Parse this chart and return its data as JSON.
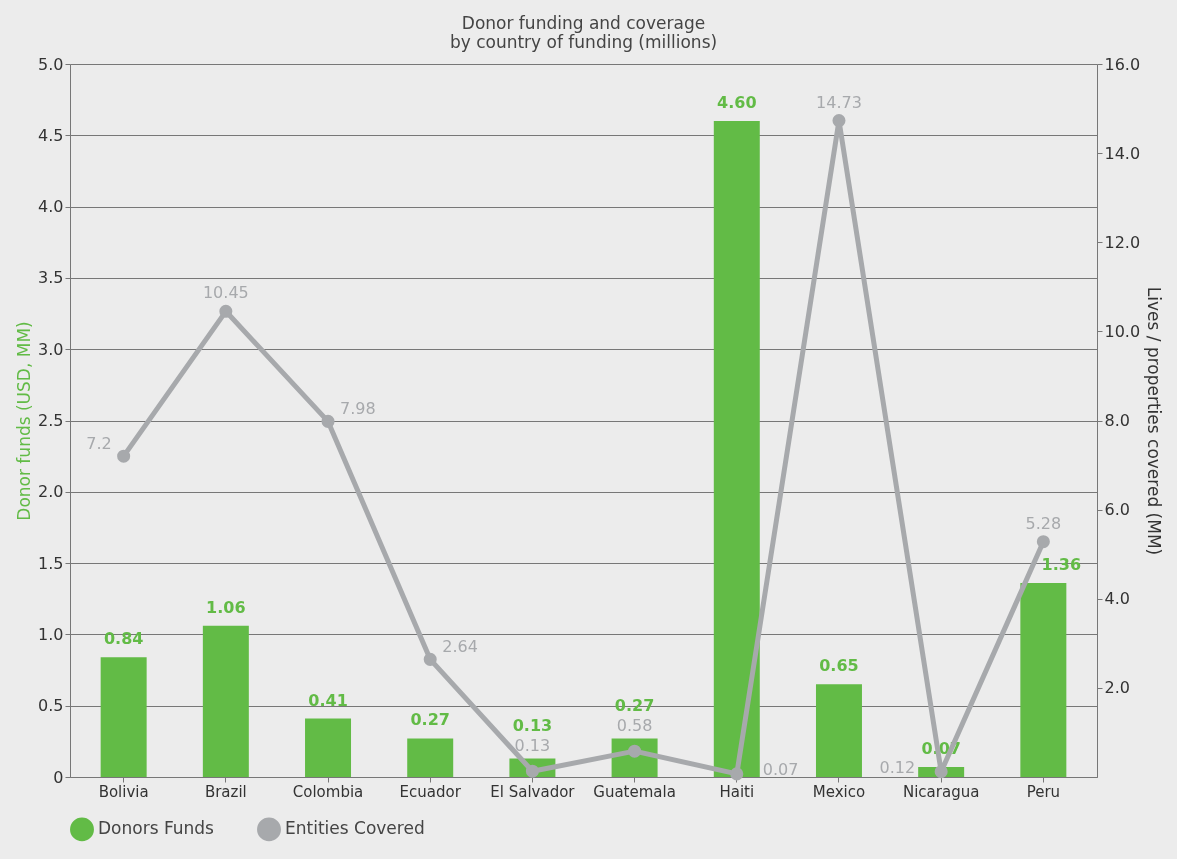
{
  "chart_data": {
    "type": "bar",
    "title": "Donor funding and coverage\nby country of funding (millions)",
    "ylabel": "Donor funds (USD, MM)",
    "y2label": "Lives / properties covered (MM)",
    "categories": [
      "Bolivia",
      "Brazil",
      "Colombia",
      "Ecuador",
      "El Salvador",
      "Guatemala",
      "Haiti",
      "Mexico",
      "Nicaragua",
      "Peru"
    ],
    "series": [
      {
        "name": "Donors Funds",
        "type": "bar",
        "axis": "y",
        "color": "#62bb46",
        "values": [
          0.84,
          1.06,
          0.41,
          0.27,
          0.13,
          0.27,
          4.6,
          0.65,
          0.07,
          1.36
        ],
        "value_labels": [
          "0.84",
          "1.06",
          "0.41",
          "0.27",
          "0.13",
          "0.27",
          "4.60",
          "0.65",
          "0.07",
          "1.36"
        ]
      },
      {
        "name": "Entities Covered",
        "type": "line",
        "axis": "y2",
        "color": "#a7a9ac",
        "marker": "circle",
        "line_style": "solid",
        "values": [
          7.2,
          10.45,
          7.98,
          2.64,
          0.13,
          0.58,
          0.07,
          14.73,
          0.12,
          5.28
        ],
        "value_labels": [
          "7.2",
          "10.45",
          "7.98",
          "2.64",
          "0.13",
          "0.58",
          "0.07",
          "14.73",
          "0.12",
          "5.28"
        ]
      }
    ],
    "ylim": [
      0,
      5
    ],
    "yticks": [
      0,
      {
        "value": 0.5,
        "label": "0.5"
      },
      {
        "value": 1,
        "label": "1.0"
      },
      {
        "value": 1.5,
        "label": "1.5"
      },
      {
        "value": 2,
        "label": "2.0"
      },
      {
        "value": 2.5,
        "label": "2.5"
      },
      {
        "value": 3,
        "label": "3.0"
      },
      {
        "value": 3.5,
        "label": "3.5"
      },
      {
        "value": 4,
        "label": "4.0"
      },
      {
        "value": 4.5,
        "label": "4.5"
      },
      {
        "value": 5,
        "label": "5.0"
      }
    ],
    "y2lim": [
      0,
      16
    ],
    "y2ticks": [
      {
        "value": 2,
        "label": "2.0"
      },
      {
        "value": 4,
        "label": "4.0"
      },
      {
        "value": 6,
        "label": "6.0"
      },
      {
        "value": 8,
        "label": "8.0"
      },
      {
        "value": 10,
        "label": "10.0"
      },
      {
        "value": 12,
        "label": "12.0"
      },
      {
        "value": 14,
        "label": "14.0"
      },
      {
        "value": 16,
        "label": "16.0"
      }
    ],
    "grid": "y",
    "legend": "bottom"
  }
}
